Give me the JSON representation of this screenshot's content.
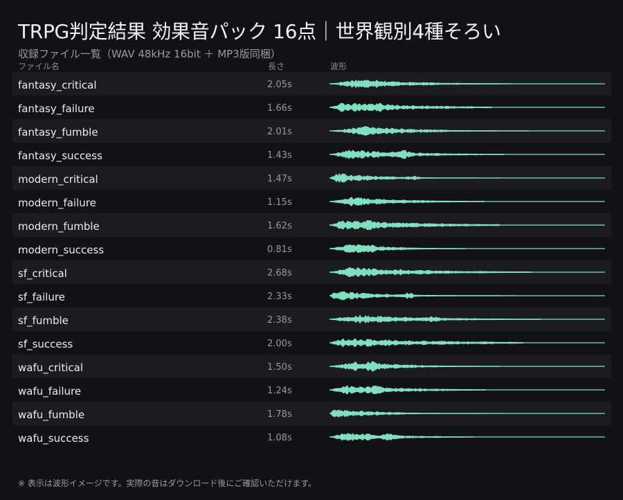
{
  "header": {
    "title": "TRPG判定結果 効果音パック 16点｜世界観別4種そろい",
    "subtitle": "収録ファイル一覧（WAV 48kHz 16bit ＋ MP3版同梱）"
  },
  "columns": {
    "name": "ファイル名",
    "length": "長さ",
    "waveform": "波形"
  },
  "colors": {
    "background": "#121216",
    "row_alt": "#1b1b20",
    "waveform": "#7fe0bf",
    "text": "#ececf2",
    "muted": "#9a9aa6"
  },
  "files": [
    {
      "name": "fantasy_critical",
      "length": "2.05s"
    },
    {
      "name": "fantasy_failure",
      "length": "1.66s"
    },
    {
      "name": "fantasy_fumble",
      "length": "2.01s"
    },
    {
      "name": "fantasy_success",
      "length": "1.43s"
    },
    {
      "name": "modern_critical",
      "length": "1.47s"
    },
    {
      "name": "modern_failure",
      "length": "1.15s"
    },
    {
      "name": "modern_fumble",
      "length": "1.62s"
    },
    {
      "name": "modern_success",
      "length": "0.81s"
    },
    {
      "name": "sf_critical",
      "length": "2.68s"
    },
    {
      "name": "sf_failure",
      "length": "2.33s"
    },
    {
      "name": "sf_fumble",
      "length": "2.38s"
    },
    {
      "name": "sf_success",
      "length": "2.00s"
    },
    {
      "name": "wafu_critical",
      "length": "1.50s"
    },
    {
      "name": "wafu_failure",
      "length": "1.24s"
    },
    {
      "name": "wafu_fumble",
      "length": "1.78s"
    },
    {
      "name": "wafu_success",
      "length": "1.08s"
    }
  ],
  "footer": {
    "note": "※ 表示は波形イメージです。実際の音はダウンロード後にご確認いただけます。"
  }
}
